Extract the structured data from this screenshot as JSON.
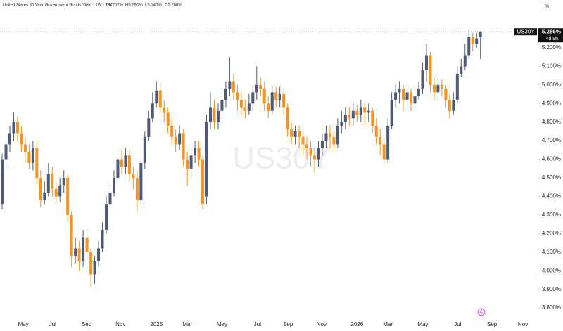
{
  "chart_data": {
    "type": "candlestick",
    "title": "United States 30 Year Government Bonds Yield · 1W · TYC",
    "ohlc_labels": [
      "O5.257%",
      "H5.290%",
      "L5.140%",
      "C5.286%"
    ],
    "symbol": "US30Y",
    "unit": "%",
    "last_price_label": "5.286%",
    "countdown": "4d 9h",
    "up_color": "#4f5a78",
    "down_color": "#f7931e",
    "open": [
      4.36,
      4.6,
      4.68,
      4.74,
      4.8,
      4.74,
      4.68,
      4.64,
      4.58,
      4.66,
      4.5,
      4.38,
      4.42,
      4.52,
      4.44,
      4.4,
      4.46,
      4.5,
      4.3,
      4.08,
      4.12,
      4.05,
      4.18,
      4.1,
      3.98,
      4.05,
      4.12,
      4.22,
      4.36,
      4.42,
      4.5,
      4.6,
      4.56,
      4.62,
      4.52,
      4.5,
      4.38,
      4.58,
      4.72,
      4.82,
      4.9,
      4.97,
      4.88,
      4.85,
      4.78,
      4.72,
      4.68,
      4.74,
      4.6,
      4.55,
      4.62,
      4.66,
      4.6,
      4.4,
      4.8,
      4.88,
      4.8,
      4.86,
      4.92,
      4.98,
      5.02,
      4.96,
      4.92,
      4.88,
      4.86,
      4.9,
      4.96,
      5.0,
      4.98,
      4.9,
      4.86,
      4.96,
      4.92,
      4.95,
      4.88,
      4.76,
      4.72,
      4.75,
      4.72,
      4.68,
      4.66,
      4.62,
      4.6,
      4.66,
      4.7,
      4.74,
      4.72,
      4.68,
      4.78,
      4.8,
      4.84,
      4.82,
      4.86,
      4.84,
      4.88,
      4.85,
      4.86,
      4.78,
      4.72,
      4.68,
      4.6,
      4.78,
      4.92,
      4.96,
      4.98,
      4.92,
      4.96,
      4.9,
      4.94,
      4.98,
      5.08,
      5.16,
      5.0,
      4.96,
      5.0,
      4.98,
      4.92,
      4.86,
      4.92,
      5.06,
      5.1,
      5.16,
      5.26,
      5.22,
      5.257
    ],
    "high": [
      4.63,
      4.72,
      4.78,
      4.85,
      4.83,
      4.78,
      4.72,
      4.68,
      4.7,
      4.7,
      4.54,
      4.48,
      4.58,
      4.56,
      4.48,
      4.5,
      4.54,
      4.52,
      4.32,
      4.18,
      4.16,
      4.22,
      4.22,
      4.12,
      4.08,
      4.16,
      4.26,
      4.4,
      4.46,
      4.54,
      4.64,
      4.65,
      4.66,
      4.65,
      4.56,
      4.54,
      4.6,
      4.75,
      4.86,
      4.96,
      5.02,
      5.01,
      4.92,
      4.88,
      4.82,
      4.76,
      4.78,
      4.76,
      4.64,
      4.66,
      4.7,
      4.7,
      4.62,
      4.84,
      4.96,
      4.92,
      4.9,
      4.96,
      5.02,
      5.15,
      5.06,
      5.0,
      4.96,
      4.92,
      4.95,
      5.0,
      5.1,
      5.04,
      5.02,
      4.94,
      5.0,
      4.99,
      4.99,
      4.98,
      4.9,
      4.8,
      4.78,
      4.78,
      4.75,
      4.72,
      4.7,
      4.66,
      4.7,
      4.74,
      4.78,
      4.78,
      4.75,
      4.82,
      4.86,
      4.88,
      4.88,
      4.9,
      4.89,
      4.92,
      4.9,
      4.9,
      4.88,
      4.82,
      4.76,
      4.72,
      4.82,
      4.96,
      5.0,
      5.02,
      5.0,
      5.0,
      4.98,
      4.98,
      5.02,
      5.12,
      5.22,
      5.18,
      5.04,
      5.04,
      5.03,
      5.0,
      4.95,
      4.96,
      5.1,
      5.14,
      5.22,
      5.3,
      5.28,
      5.28,
      5.29
    ],
    "low": [
      4.33,
      4.56,
      4.64,
      4.7,
      4.7,
      4.64,
      4.58,
      4.55,
      4.54,
      4.46,
      4.34,
      4.36,
      4.4,
      4.4,
      4.36,
      4.37,
      4.42,
      4.26,
      4.02,
      4.04,
      4.0,
      4.02,
      4.06,
      3.91,
      3.93,
      4.02,
      4.1,
      4.2,
      4.34,
      4.4,
      4.48,
      4.52,
      4.52,
      4.48,
      4.44,
      4.32,
      4.36,
      4.55,
      4.7,
      4.8,
      4.88,
      4.85,
      4.8,
      4.74,
      4.68,
      4.64,
      4.65,
      4.56,
      4.46,
      4.5,
      4.58,
      4.56,
      4.33,
      4.36,
      4.76,
      4.76,
      4.76,
      4.82,
      4.88,
      4.94,
      4.92,
      4.86,
      4.84,
      4.82,
      4.84,
      4.86,
      4.92,
      4.94,
      4.86,
      4.82,
      4.84,
      4.88,
      4.88,
      4.84,
      4.72,
      4.68,
      4.68,
      4.66,
      4.62,
      4.6,
      4.56,
      4.53,
      4.56,
      4.62,
      4.66,
      4.66,
      4.64,
      4.66,
      4.74,
      4.76,
      4.78,
      4.78,
      4.8,
      4.8,
      4.78,
      4.8,
      4.74,
      4.68,
      4.62,
      4.58,
      4.58,
      4.76,
      4.88,
      4.9,
      4.86,
      4.88,
      4.86,
      4.88,
      4.92,
      4.95,
      5.02,
      4.96,
      4.92,
      4.92,
      4.94,
      4.88,
      4.82,
      4.84,
      4.9,
      5.04,
      5.08,
      5.14,
      5.18,
      5.2,
      5.14
    ],
    "close": [
      4.6,
      4.68,
      4.74,
      4.8,
      4.74,
      4.68,
      4.64,
      4.58,
      4.66,
      4.5,
      4.38,
      4.42,
      4.52,
      4.44,
      4.4,
      4.46,
      4.5,
      4.3,
      4.08,
      4.12,
      4.05,
      4.18,
      4.1,
      3.98,
      4.05,
      4.12,
      4.22,
      4.36,
      4.42,
      4.5,
      4.6,
      4.56,
      4.62,
      4.52,
      4.5,
      4.38,
      4.58,
      4.72,
      4.82,
      4.9,
      4.97,
      4.88,
      4.85,
      4.78,
      4.72,
      4.68,
      4.74,
      4.6,
      4.55,
      4.62,
      4.66,
      4.6,
      4.36,
      4.8,
      4.88,
      4.8,
      4.86,
      4.92,
      4.98,
      5.02,
      4.96,
      4.92,
      4.88,
      4.86,
      4.9,
      4.96,
      5.0,
      4.98,
      4.9,
      4.86,
      4.96,
      4.92,
      4.95,
      4.88,
      4.76,
      4.72,
      4.75,
      4.72,
      4.68,
      4.66,
      4.62,
      4.6,
      4.66,
      4.7,
      4.74,
      4.72,
      4.68,
      4.78,
      4.8,
      4.84,
      4.82,
      4.86,
      4.84,
      4.88,
      4.85,
      4.86,
      4.78,
      4.72,
      4.68,
      4.6,
      4.78,
      4.92,
      4.96,
      4.98,
      4.92,
      4.96,
      4.9,
      4.94,
      4.98,
      5.08,
      5.16,
      5.0,
      4.96,
      5.0,
      4.98,
      4.92,
      4.86,
      4.92,
      5.06,
      5.1,
      5.16,
      5.26,
      5.22,
      5.25,
      5.286
    ],
    "xlim": [
      -0.55,
      145.4
    ],
    "xticks": [
      {
        "value": 5.5,
        "label": "May"
      },
      {
        "value": 13.1,
        "label": "Jul"
      },
      {
        "value": 21.9,
        "label": "Sep"
      },
      {
        "value": 30.7,
        "label": "Nov"
      },
      {
        "value": 40.0,
        "label": "2025"
      },
      {
        "value": 48.0,
        "label": "Mar"
      },
      {
        "value": 57.0,
        "label": "May"
      },
      {
        "value": 66.2,
        "label": "Jul"
      },
      {
        "value": 74.1,
        "label": "Sep"
      },
      {
        "value": 82.8,
        "label": "Nov"
      },
      {
        "value": 92.0,
        "label": "2026"
      },
      {
        "value": 100.0,
        "label": "Mar"
      },
      {
        "value": 109.1,
        "label": "May"
      },
      {
        "value": 118.1,
        "label": "Jul"
      },
      {
        "value": 127.0,
        "label": "Sep"
      },
      {
        "value": 135.0,
        "label": "Nov"
      }
    ],
    "ylim": [
      3.736,
      5.457
    ],
    "yticks": [
      {
        "value": 5.2,
        "label": "5.200%"
      },
      {
        "value": 5.1,
        "label": "5.100%"
      },
      {
        "value": 5.0,
        "label": "5.000%"
      },
      {
        "value": 4.9,
        "label": "4.900%"
      },
      {
        "value": 4.8,
        "label": "4.800%"
      },
      {
        "value": 4.7,
        "label": "4.700%"
      },
      {
        "value": 4.6,
        "label": "4.600%"
      },
      {
        "value": 4.5,
        "label": "4.500%"
      },
      {
        "value": 4.4,
        "label": "4.400%"
      },
      {
        "value": 4.3,
        "label": "4.300%"
      },
      {
        "value": 4.2,
        "label": "4.200%"
      },
      {
        "value": 4.1,
        "label": "4.100%"
      },
      {
        "value": 4.0,
        "label": "4.000%"
      },
      {
        "value": 3.9,
        "label": "3.900%"
      },
      {
        "value": 3.8,
        "label": "3.800%"
      }
    ]
  }
}
